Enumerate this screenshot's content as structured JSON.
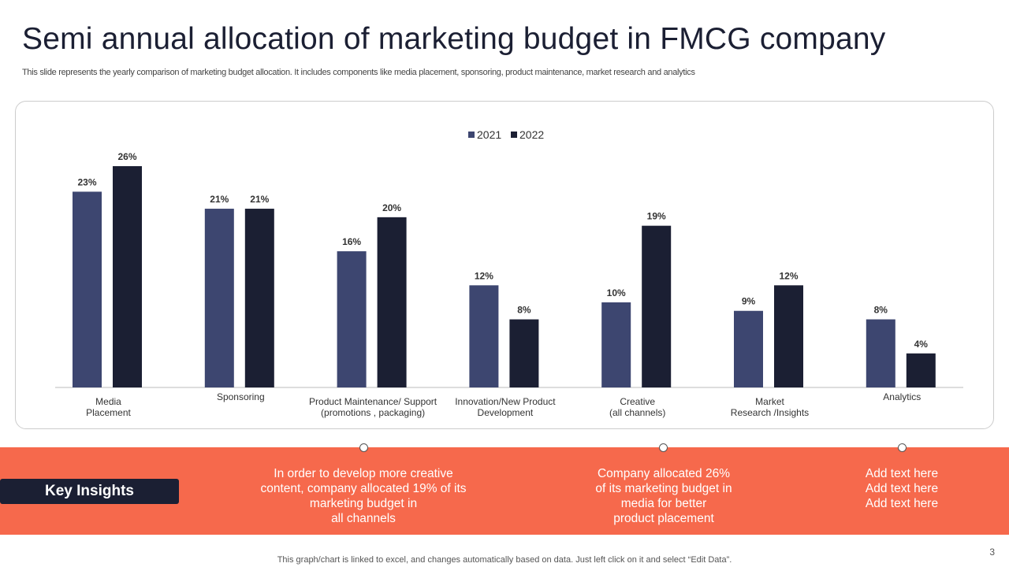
{
  "title": "Semi annual allocation of marketing budget in FMCG company",
  "subtitle": "This slide represents the yearly comparison of marketing budget allocation. It includes components like media placement, sponsoring, product maintenance, market research and analytics",
  "chart_data": {
    "type": "bar",
    "categories": [
      "Media\nPlacement",
      "Sponsoring",
      "Product Maintenance/ Support\n(promotions , packaging)",
      "Innovation/New Product\nDevelopment",
      "Creative\n(all channels)",
      "Market\nResearch /Insights",
      "Analytics"
    ],
    "series": [
      {
        "name": "2021",
        "values": [
          23,
          21,
          16,
          12,
          10,
          9,
          8
        ],
        "color": "#3d4670"
      },
      {
        "name": "2022",
        "values": [
          26,
          21,
          20,
          8,
          19,
          12,
          4
        ],
        "color": "#1b1f33"
      }
    ],
    "ylim": [
      0,
      26
    ],
    "grid": false,
    "legend": "top-center",
    "value_format": "percent"
  },
  "insights": {
    "label": "Key Insights",
    "items": [
      "In order to develop more creative\ncontent, company allocated 19% of its\nmarketing budget in\nall channels",
      "Company allocated 26%\nof its marketing budget in\nmedia for better\nproduct placement",
      "Add text here\nAdd text here\nAdd text here"
    ]
  },
  "footer": "This graph/chart is linked to excel,  and changes automatically based on data. Just left click on it and select “Edit Data”.",
  "page_number": "3"
}
